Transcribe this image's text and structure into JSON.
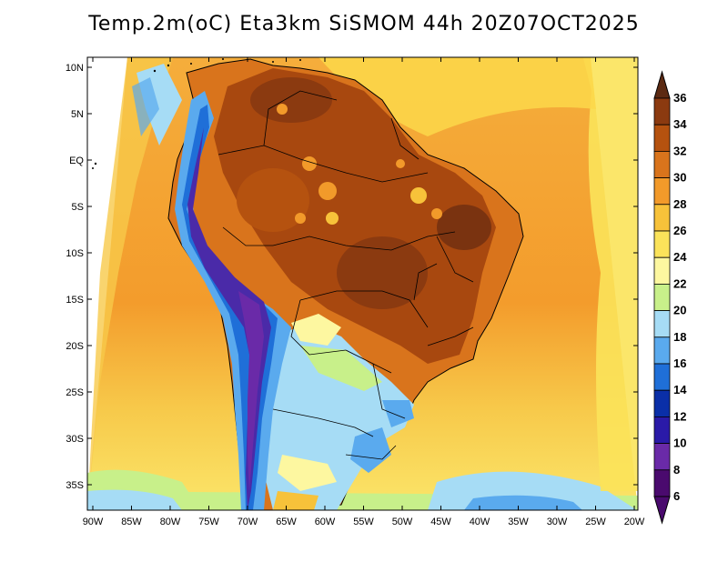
{
  "title": "Temp.2m(oC) Eta3km SiSMOM 44h 20Z07OCT2025",
  "lat_labels": [
    "10N",
    "5N",
    "EQ",
    "5S",
    "10S",
    "15S",
    "20S",
    "25S",
    "30S",
    "35S"
  ],
  "lon_labels": [
    "90W",
    "85W",
    "80W",
    "75W",
    "70W",
    "65W",
    "60W",
    "55W",
    "50W",
    "45W",
    "40W",
    "35W",
    "30W",
    "25W",
    "20W"
  ],
  "colorbar": {
    "labels": [
      "36",
      "34",
      "32",
      "30",
      "28",
      "26",
      "24",
      "22",
      "20",
      "18",
      "16",
      "14",
      "12",
      "10",
      "8",
      "6"
    ],
    "colors": [
      "#5c2a12",
      "#8b3a10",
      "#b5520f",
      "#d9741c",
      "#f29a2a",
      "#f7c23a",
      "#fbe35a",
      "#fdf7a0",
      "#c8f08a",
      "#a6dcf5",
      "#5aaaee",
      "#1f6fd8",
      "#0a2fa8",
      "#2a1aa8",
      "#6a2aa8",
      "#4a0a6e"
    ]
  },
  "colors": {
    "ocean_warm": "#f5a83c",
    "ocean_mid": "#f7c94a",
    "ocean_cool": "#fbe66a",
    "land_hot": "#a0470f",
    "land_very_hot": "#7a3310",
    "andes_cold": "#4a2aa8",
    "south_cool": "#9fd3f0",
    "coast_line": "#000000"
  }
}
